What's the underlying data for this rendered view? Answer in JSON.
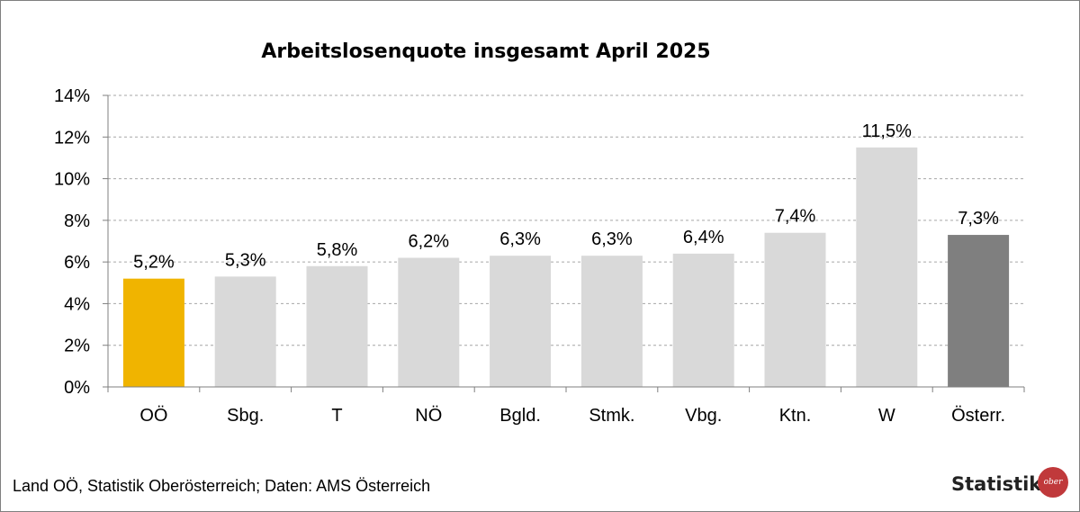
{
  "chart_data": {
    "type": "bar",
    "title": "Arbeitslosenquote insgesamt April 2025",
    "categories": [
      "OÖ",
      "Sbg.",
      "T",
      "NÖ",
      "Bgld.",
      "Stmk.",
      "Vbg.",
      "Ktn.",
      "W",
      "Österr."
    ],
    "values": [
      5.2,
      5.3,
      5.8,
      6.2,
      6.3,
      6.3,
      6.4,
      7.4,
      11.5,
      7.3
    ],
    "value_labels": [
      "5,2%",
      "5,3%",
      "5,8%",
      "6,2%",
      "6,3%",
      "6,3%",
      "6,4%",
      "7,4%",
      "11,5%",
      "7,3%"
    ],
    "bar_colors": [
      "#f0b400",
      "#d9d9d9",
      "#d9d9d9",
      "#d9d9d9",
      "#d9d9d9",
      "#d9d9d9",
      "#d9d9d9",
      "#d9d9d9",
      "#d9d9d9",
      "#7f7f7f"
    ],
    "ylim": [
      0,
      14
    ],
    "yticks": [
      0,
      2,
      4,
      6,
      8,
      10,
      12,
      14
    ],
    "ytick_labels": [
      "0%",
      "2%",
      "4%",
      "6%",
      "8%",
      "10%",
      "12%",
      "14%"
    ],
    "grid": true,
    "gridline_color": "#a6a6a6",
    "xlabel": "",
    "ylabel": ""
  },
  "footer": {
    "source": "Land OÖ, Statistik Oberösterreich; Daten: AMS Österreich",
    "brand": "Statistik",
    "logo_text": "ober"
  }
}
